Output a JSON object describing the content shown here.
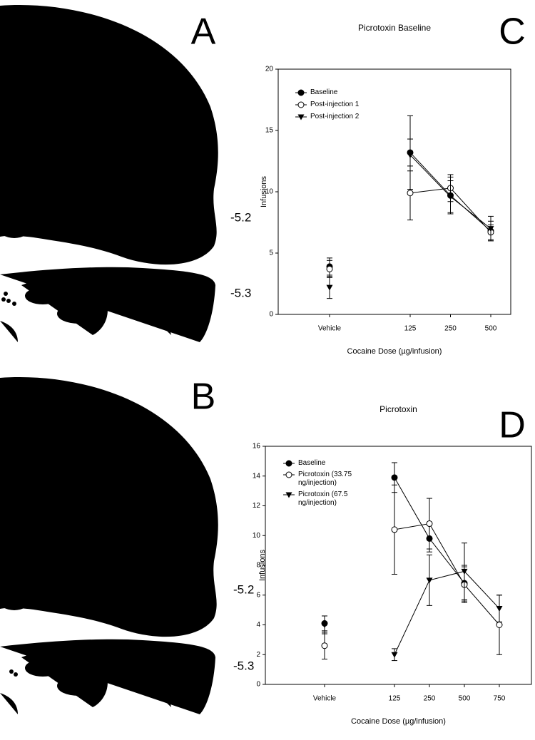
{
  "figure": {
    "panel_labels": [
      "A",
      "B",
      "C",
      "D"
    ],
    "atlas_labels": [
      "-5.2",
      "-5.3",
      "-5.2",
      "-5.3"
    ]
  },
  "chart_data": [
    {
      "type": "line",
      "title": "Picrotoxin Baseline",
      "x_label": "Cocaine Dose (µg/infusion)",
      "y_label": "Infusions",
      "categories": [
        "Vehicle",
        null,
        "125",
        "250",
        "500"
      ],
      "ylim": [
        0,
        20
      ],
      "yticks": [
        0,
        5,
        10,
        15,
        20
      ],
      "legend": "upper left",
      "series": [
        {
          "name": "Baseline",
          "color": "#000000",
          "marker": "filled-circle",
          "values": [
            3.9,
            null,
            13.2,
            9.7,
            6.8
          ],
          "errors": [
            0.7,
            null,
            3.0,
            1.5,
            0.8
          ]
        },
        {
          "name": "Post-injection 1",
          "color": "#000000",
          "marker": "open-circle",
          "values": [
            3.7,
            null,
            9.9,
            10.3,
            6.7
          ],
          "errors": [
            0.7,
            null,
            2.2,
            1.1,
            0.6
          ]
        },
        {
          "name": "Post-injection 2",
          "color": "#000000",
          "marker": "filled-triangle",
          "values": [
            2.2,
            null,
            13.0,
            9.6,
            7.0
          ],
          "errors": [
            0.9,
            null,
            1.3,
            1.3,
            1.0
          ]
        }
      ]
    },
    {
      "type": "line",
      "title": "Picrotoxin",
      "x_label": "Cocaine Dose (µg/infusion)",
      "y_label": "Infusions",
      "categories": [
        "Vehicle",
        null,
        "125",
        "250",
        "500",
        "750"
      ],
      "ylim": [
        0,
        16
      ],
      "yticks": [
        0,
        2,
        4,
        6,
        8,
        10,
        12,
        14,
        16
      ],
      "legend": "upper left",
      "series": [
        {
          "name": "Baseline",
          "color": "#000000",
          "marker": "filled-circle",
          "values": [
            4.1,
            null,
            13.9,
            9.8,
            6.8,
            null
          ],
          "errors": [
            0.5,
            null,
            1.0,
            0.9,
            1.2,
            null
          ]
        },
        {
          "name": "Picrotoxin (33.75 ng/injection)",
          "color": "#000000",
          "marker": "open-circle",
          "values": [
            2.6,
            null,
            10.4,
            10.8,
            6.7,
            4.0
          ],
          "errors": [
            0.9,
            null,
            3.0,
            1.7,
            1.2,
            2.0
          ]
        },
        {
          "name": "Picrotoxin (67.5 ng/injection)",
          "color": "#000000",
          "marker": "filled-triangle",
          "values": [
            4.0,
            null,
            2.0,
            7.0,
            7.6,
            5.1
          ],
          "errors": [
            0.6,
            null,
            0.4,
            1.7,
            1.9,
            0.9
          ]
        }
      ]
    }
  ]
}
